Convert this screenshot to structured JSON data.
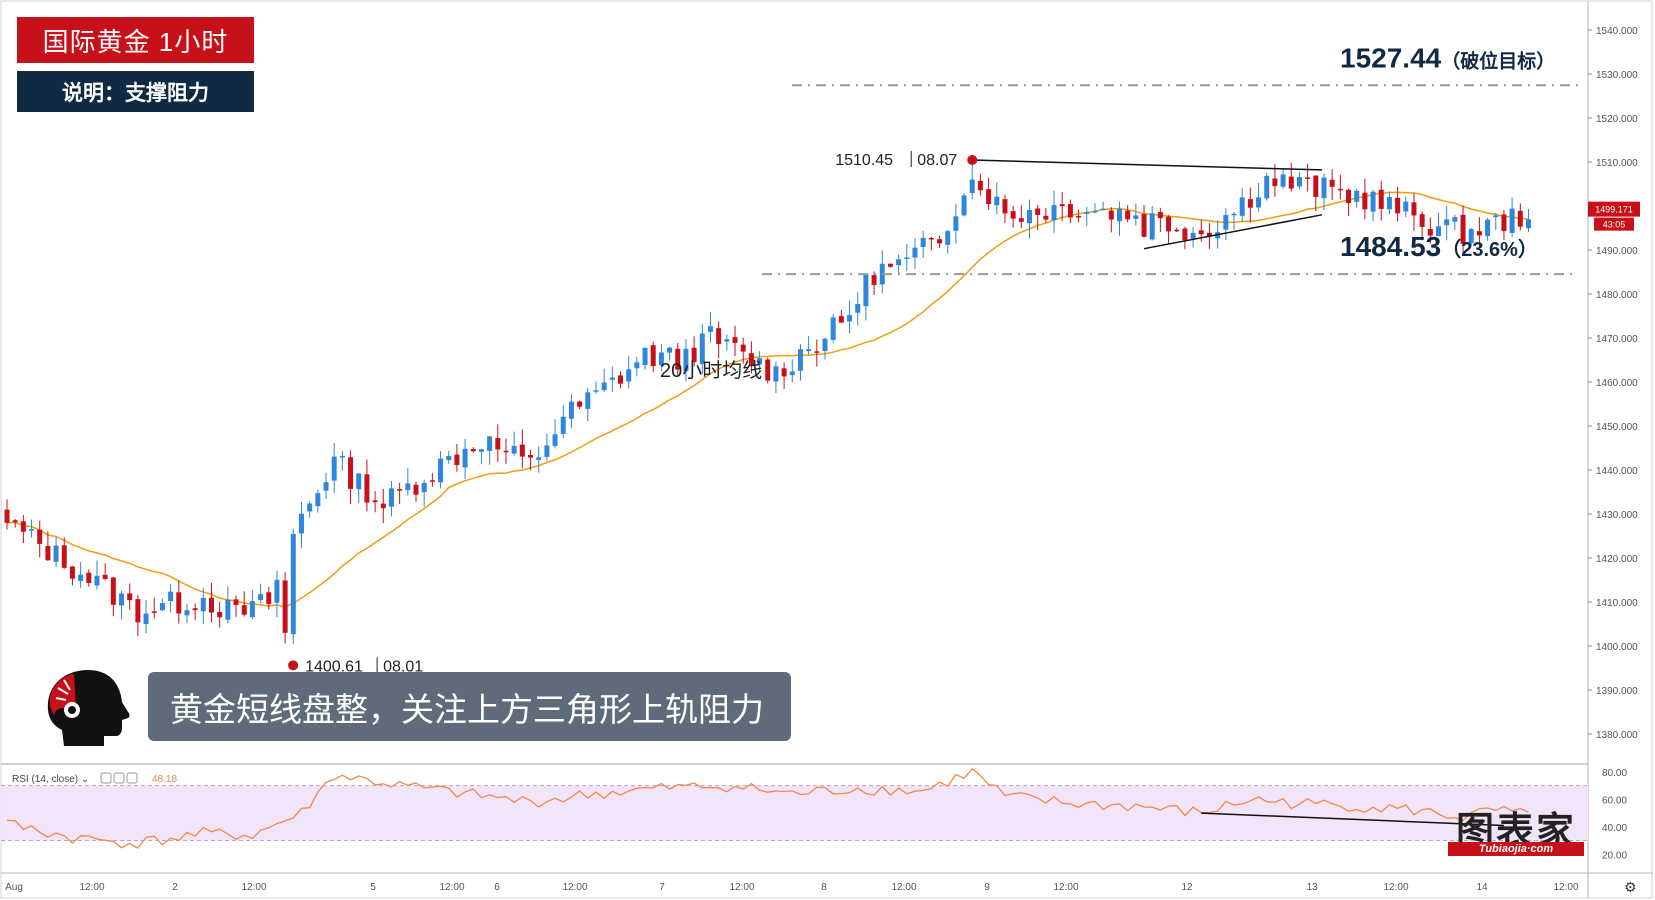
{
  "header": {
    "title": "国际黄金  1小时",
    "subtitle": "说明：支撑阻力"
  },
  "caption": "黄金短线盘整，关注上方三角形上轨阻力",
  "brand": {
    "cn": "图表家",
    "en": "Tubiaojia·com"
  },
  "icons": {
    "logo": "head-logo-icon",
    "settings": "gear-icon"
  },
  "colors": {
    "up": "#2e86de",
    "down": "#c8101a",
    "ma": "#f39c12",
    "rsi": "#f08a4b",
    "rsi_band": "#f3e5f9",
    "title_bg": "#c8101a",
    "subtitle_bg": "#102a43",
    "caption_bg": "#5f6b7a"
  },
  "chart_data": [
    {
      "type": "candlestick",
      "y_axis": {
        "min": 1375,
        "max": 1545,
        "ticks": [
          "1540.000",
          "1530.000",
          "1520.000",
          "1510.000",
          "1500.000",
          "1490.000",
          "1480.000",
          "1470.000",
          "1460.000",
          "1450.000",
          "1440.000",
          "1430.000",
          "1420.000",
          "1410.000",
          "1400.000",
          "1390.000",
          "1380.000"
        ]
      },
      "x_axis": {
        "ticks": [
          "Aug",
          "12:00",
          "2",
          "12:00",
          "5",
          "12:00",
          "6",
          "12:00",
          "7",
          "12:00",
          "8",
          "12:00",
          "9",
          "12:00",
          "12",
          "13",
          "12:00",
          "14",
          "12:00"
        ]
      },
      "current_price": {
        "value": "1499.171",
        "countdown": "43:05"
      },
      "series": [
        {
          "name": "20小时均线",
          "kind": "moving_average"
        }
      ],
      "close_anchors": [
        [
          0,
          1428
        ],
        [
          8,
          1418
        ],
        [
          16,
          1408
        ],
        [
          24,
          1411
        ],
        [
          28,
          1407
        ],
        [
          32,
          1410
        ],
        [
          36,
          1430
        ],
        [
          40,
          1442
        ],
        [
          46,
          1432
        ],
        [
          52,
          1440
        ],
        [
          58,
          1447
        ],
        [
          64,
          1441
        ],
        [
          68,
          1452
        ],
        [
          72,
          1457
        ],
        [
          78,
          1466
        ],
        [
          82,
          1465
        ],
        [
          86,
          1470
        ],
        [
          90,
          1466
        ],
        [
          94,
          1462
        ],
        [
          98,
          1468
        ],
        [
          102,
          1473
        ],
        [
          106,
          1485
        ],
        [
          110,
          1487
        ],
        [
          114,
          1493
        ],
        [
          118,
          1508
        ],
        [
          122,
          1498
        ],
        [
          130,
          1500
        ],
        [
          138,
          1498
        ],
        [
          146,
          1494
        ],
        [
          150,
          1499
        ],
        [
          154,
          1506
        ],
        [
          160,
          1504
        ],
        [
          166,
          1502
        ],
        [
          170,
          1499
        ],
        [
          174,
          1496
        ],
        [
          178,
          1494
        ],
        [
          182,
          1496
        ],
        [
          184,
          1497
        ],
        [
          186,
          1499
        ]
      ],
      "annotations": {
        "high": {
          "price": "1510.45",
          "date": "08.07"
        },
        "low": {
          "price": "1400.61",
          "date": "08.01"
        },
        "resistance": {
          "price": "1527.44",
          "note": "（破位目标）",
          "value": 1527.44
        },
        "support": {
          "price": "1484.53",
          "note": "（23.6%）",
          "value": 1484.53
        },
        "ma_label": "20小时均线",
        "triangle": {
          "upper": [
            [
              1510.45,
              1508.2
            ]
          ],
          "lower": [
            [
              1490.3,
              1498
            ]
          ]
        }
      }
    },
    {
      "type": "line",
      "legend": {
        "name": "RSI (14, close)",
        "value": "48.18"
      },
      "y_axis": {
        "min": 18,
        "max": 88,
        "ticks": [
          "80.00",
          "60.00",
          "40.00",
          "20.00"
        ],
        "band": [
          30,
          70
        ]
      },
      "rsi_anchors": [
        [
          0,
          42
        ],
        [
          8,
          32
        ],
        [
          16,
          28
        ],
        [
          24,
          35
        ],
        [
          30,
          34
        ],
        [
          36,
          50
        ],
        [
          40,
          78
        ],
        [
          48,
          70
        ],
        [
          56,
          64
        ],
        [
          64,
          58
        ],
        [
          72,
          64
        ],
        [
          80,
          68
        ],
        [
          88,
          70
        ],
        [
          96,
          64
        ],
        [
          104,
          68
        ],
        [
          112,
          66
        ],
        [
          118,
          80
        ],
        [
          122,
          62
        ],
        [
          130,
          57
        ],
        [
          138,
          55
        ],
        [
          146,
          50
        ],
        [
          152,
          60
        ],
        [
          158,
          57
        ],
        [
          166,
          55
        ],
        [
          172,
          52
        ],
        [
          178,
          47
        ],
        [
          182,
          52
        ],
        [
          184,
          50
        ],
        [
          186,
          48
        ]
      ]
    }
  ]
}
